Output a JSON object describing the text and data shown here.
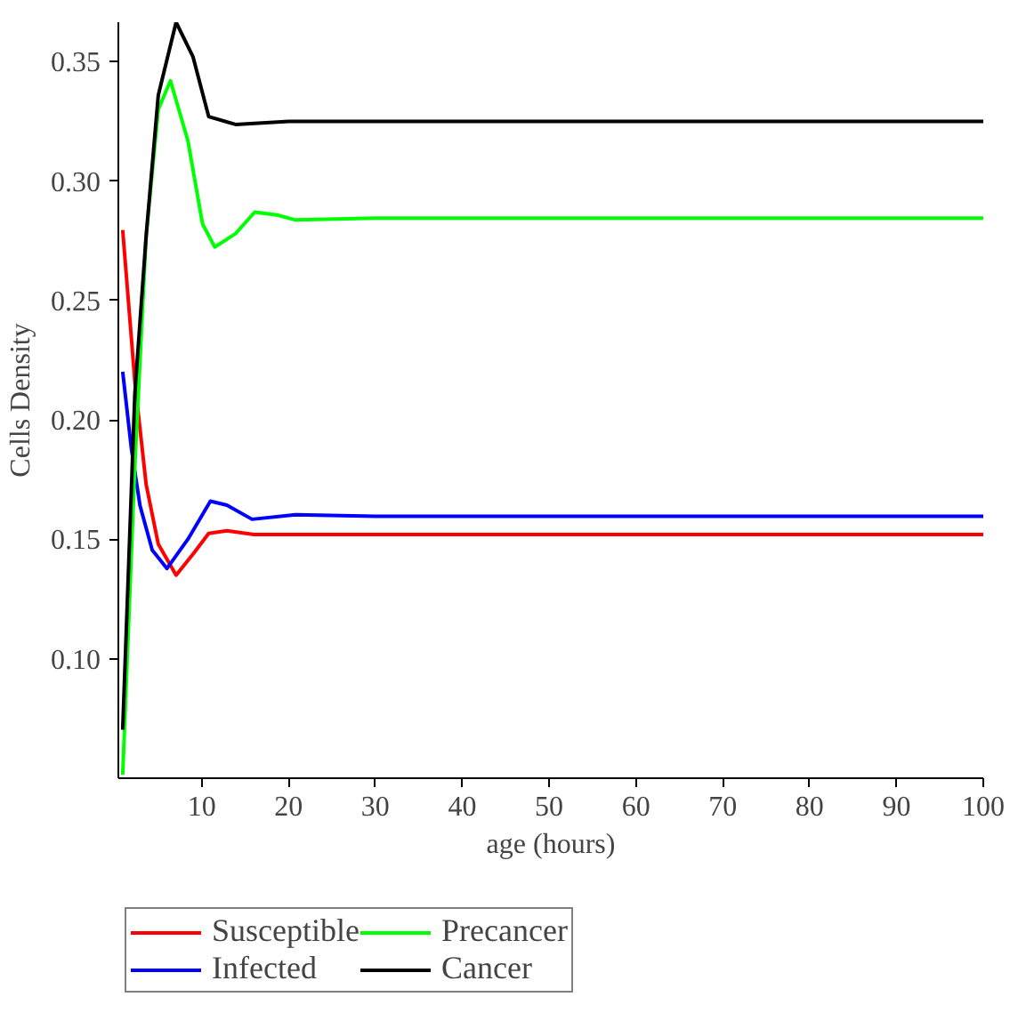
{
  "chart_data": {
    "type": "line",
    "xlabel": "age (hours)",
    "ylabel": "Cells Density",
    "xlim": [
      0.4,
      100
    ],
    "ylim": [
      0.05,
      0.3665
    ],
    "xticks": [
      10,
      20,
      30,
      40,
      50,
      60,
      70,
      80,
      90,
      100
    ],
    "yticks": [
      {
        "value": 0.1,
        "label": "0.10"
      },
      {
        "value": 0.15,
        "label": "0.15"
      },
      {
        "value": 0.2,
        "label": "0.20"
      },
      {
        "value": 0.25,
        "label": "0.25"
      },
      {
        "value": 0.3,
        "label": "0.30"
      },
      {
        "value": 0.35,
        "label": "0.35"
      }
    ],
    "grid": false,
    "legend": "bottom",
    "line_style": "solid",
    "series": [
      {
        "name": "Susceptible",
        "color": "#ff0000",
        "x": [
          0.9,
          2.3,
          3.6,
          5,
          7.05,
          9.1,
          10.8,
          12.9,
          16,
          20,
          30,
          50,
          100
        ],
        "values": [
          0.2795,
          0.216,
          0.173,
          0.148,
          0.135,
          0.1443,
          0.1525,
          0.1536,
          0.152,
          0.152,
          0.152,
          0.152,
          0.152
        ]
      },
      {
        "name": "Infected",
        "color": "#0000ff",
        "x": [
          0.9,
          1.9,
          2.9,
          4.3,
          6,
          8.4,
          11,
          12.9,
          15.8,
          20.8,
          30,
          50,
          100
        ],
        "values": [
          0.2202,
          0.188,
          0.164,
          0.1455,
          0.1378,
          0.15,
          0.166,
          0.1643,
          0.1584,
          0.1603,
          0.1597,
          0.1597,
          0.1597
        ]
      },
      {
        "name": "Precancer",
        "color": "#00ff00",
        "x": [
          0.9,
          2.3,
          3.6,
          5,
          6.4,
          8.4,
          10.1,
          11.5,
          13.9,
          16.1,
          18.7,
          20.8,
          30,
          50,
          100
        ],
        "values": [
          0.0515,
          0.181,
          0.277,
          0.33,
          0.342,
          0.317,
          0.282,
          0.2724,
          0.278,
          0.287,
          0.2858,
          0.2837,
          0.2845,
          0.2845,
          0.2845
        ]
      },
      {
        "name": "Cancer",
        "color": "#000000",
        "x": [
          0.9,
          2.3,
          3.6,
          5,
          7.05,
          9,
          10.8,
          13.9,
          20,
          30,
          50,
          100
        ],
        "values": [
          0.0703,
          0.211,
          0.277,
          0.336,
          0.3665,
          0.352,
          0.327,
          0.3237,
          0.325,
          0.325,
          0.325,
          0.325
        ]
      }
    ]
  }
}
